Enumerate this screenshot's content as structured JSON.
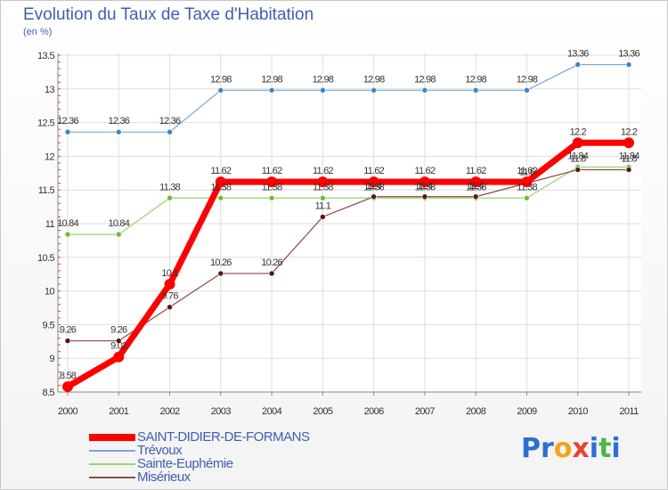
{
  "title": "Evolution du Taux de Taxe d'Habitation",
  "subtitle": "(en %)",
  "logo": {
    "text": "Proxiti",
    "letters": [
      {
        "ch": "P",
        "color": "#2e6fd4"
      },
      {
        "ch": "r",
        "color": "#2e6fd4"
      },
      {
        "ch": "o",
        "color": "#f2a31b"
      },
      {
        "ch": "x",
        "color": "#e8412f"
      },
      {
        "ch": "i",
        "color": "#2e6fd4"
      },
      {
        "ch": "t",
        "color": "#4fb540"
      },
      {
        "ch": "i",
        "color": "#2e6fd4"
      }
    ]
  },
  "chart_data": {
    "type": "line",
    "title": "Evolution du Taux de Taxe d'Habitation",
    "ylabel": "(en %)",
    "xlabel": "",
    "x": [
      "2000",
      "2001",
      "2002",
      "2003",
      "2004",
      "2005",
      "2006",
      "2007",
      "2008",
      "2009",
      "2010",
      "2011"
    ],
    "ylim": [
      8.5,
      13.5
    ],
    "yticks": [
      "8.5",
      "9",
      "9.5",
      "10",
      "10.5",
      "11",
      "11.5",
      "12",
      "12.5",
      "13",
      "13.5"
    ],
    "grid": true,
    "legend_position": "bottom-left",
    "series": [
      {
        "name": "Trévoux",
        "color": "#7aa6d8",
        "marker": "#3a86c8",
        "width": 1.2,
        "values": [
          12.36,
          12.36,
          12.36,
          12.98,
          12.98,
          12.98,
          12.98,
          12.98,
          12.98,
          12.98,
          13.36,
          13.36
        ],
        "labels": [
          "12.36",
          "12.36",
          "12.36",
          "12.98",
          "12.98",
          "12.98",
          "12.98",
          "12.98",
          "12.98",
          "12.98",
          "13.36",
          "13.36"
        ]
      },
      {
        "name": "Sainte-Euphémie",
        "color": "#9ad36a",
        "marker": "#6cbf2e",
        "width": 1.2,
        "values": [
          10.84,
          10.84,
          11.38,
          11.38,
          11.38,
          11.38,
          11.38,
          11.38,
          11.38,
          11.38,
          11.84,
          11.84
        ],
        "labels": [
          "10.84",
          "10.84",
          "11.38",
          "11.38",
          "11.38",
          "11.38",
          "11.38",
          "11.38",
          "11.38",
          "11.38",
          "11.84",
          "11.84"
        ]
      },
      {
        "name": "Misérieux",
        "color": "#8a4a4a",
        "marker": "#5a1414",
        "width": 1.2,
        "values": [
          9.26,
          9.26,
          9.76,
          10.26,
          10.26,
          11.1,
          11.4,
          11.4,
          11.4,
          11.6,
          11.8,
          11.8
        ],
        "labels": [
          "9.26",
          "9.26",
          "9.76",
          "10.26",
          "10.26",
          "11.1",
          "11.4",
          "11.4",
          "11.4",
          "11.6",
          "11.8",
          "11.8"
        ]
      },
      {
        "name": "SAINT-DIDIER-DE-FORMANS",
        "color": "#ff0000",
        "marker": "#ff0000",
        "width": 7,
        "values": [
          8.58,
          9.02,
          10.1,
          11.62,
          11.62,
          11.62,
          11.62,
          11.62,
          11.62,
          11.62,
          12.2,
          12.2
        ],
        "labels": [
          "8.58",
          "9.02",
          "10.1",
          "11.62",
          "11.62",
          "11.62",
          "11.62",
          "11.62",
          "11.62",
          "11.62",
          "12.2",
          "12.2"
        ]
      }
    ],
    "legend_order": [
      "SAINT-DIDIER-DE-FORMANS",
      "Trévoux",
      "Sainte-Euphémie",
      "Misérieux"
    ]
  }
}
